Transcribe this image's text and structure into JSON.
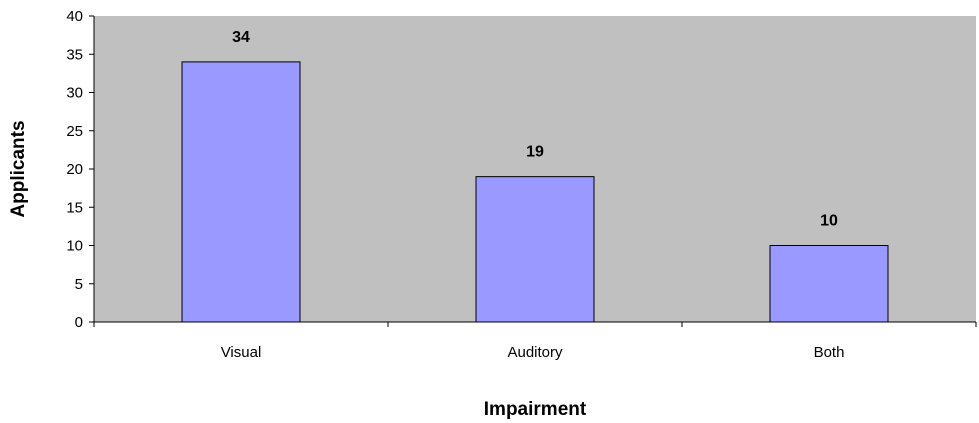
{
  "chart_data": {
    "type": "bar",
    "categories": [
      "Visual",
      "Auditory",
      "Both"
    ],
    "values": [
      34,
      19,
      10
    ],
    "data_labels": [
      "34",
      "19",
      "10"
    ],
    "title": "",
    "xlabel": "Impairment",
    "ylabel": "Applicants",
    "ylim": [
      0,
      40
    ],
    "yticks": [
      0,
      5,
      10,
      15,
      20,
      25,
      30,
      35,
      40
    ],
    "ytick_labels": [
      "0",
      "5",
      "10",
      "15",
      "20",
      "25",
      "30",
      "35",
      "40"
    ],
    "grid": false,
    "legend": "none",
    "colors": {
      "plot_background": "#c0c0c0",
      "bar_fill": "#9999ff",
      "bar_stroke": "#000000",
      "axis": "#000000"
    }
  }
}
